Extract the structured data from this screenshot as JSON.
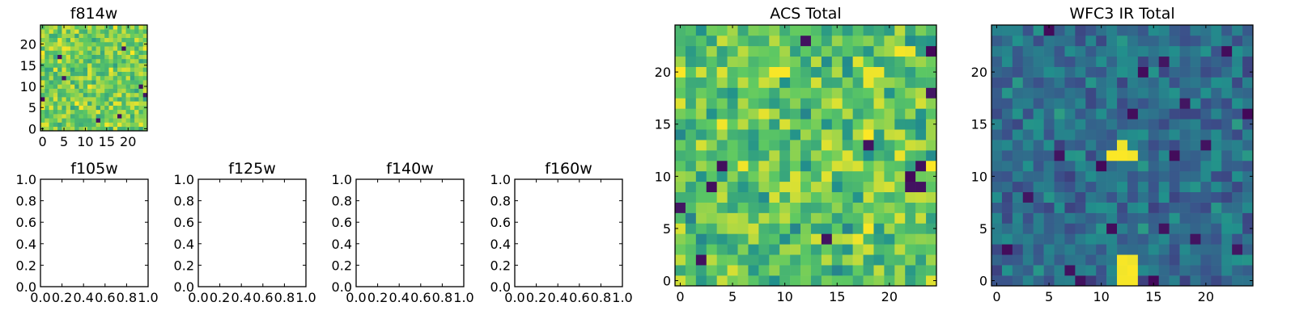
{
  "chart_data": [
    {
      "type": "heatmap",
      "title": "f814w",
      "grid_size": 25,
      "xlim": [
        -0.5,
        24.5
      ],
      "ylim": [
        -0.5,
        24.5
      ],
      "xticks": [
        0,
        5,
        10,
        15,
        20
      ],
      "yticks": [
        0,
        5,
        10,
        15,
        20
      ],
      "xtick_labels": [
        "0",
        "5",
        "10",
        "15",
        "20"
      ],
      "ytick_labels": [
        "0",
        "5",
        "10",
        "15",
        "20"
      ],
      "colormap": "viridis",
      "pattern": "noisy, mostly yellow-green (values ~0.55-0.95) with a few dark pixels",
      "grid": false
    },
    {
      "type": "heatmap",
      "title": "f105w",
      "empty": true,
      "xlim": [
        0,
        1
      ],
      "ylim": [
        0,
        1
      ],
      "xticks": [
        0.0,
        0.2,
        0.4,
        0.6,
        0.8,
        1.0
      ],
      "yticks": [
        0.0,
        0.2,
        0.4,
        0.6,
        0.8,
        1.0
      ],
      "xtick_labels": [
        "0.0",
        "0.2",
        "0.4",
        "0.6",
        "0.8",
        "1.0"
      ],
      "ytick_labels": [
        "0.0",
        "0.2",
        "0.4",
        "0.6",
        "0.8",
        "1.0"
      ]
    },
    {
      "type": "heatmap",
      "title": "f125w",
      "empty": true,
      "xlim": [
        0,
        1
      ],
      "ylim": [
        0,
        1
      ],
      "xticks": [
        0.0,
        0.2,
        0.4,
        0.6,
        0.8,
        1.0
      ],
      "yticks": [
        0.0,
        0.2,
        0.4,
        0.6,
        0.8,
        1.0
      ],
      "xtick_labels": [
        "0.0",
        "0.2",
        "0.4",
        "0.6",
        "0.8",
        "1.0"
      ],
      "ytick_labels": [
        "0.0",
        "0.2",
        "0.4",
        "0.6",
        "0.8",
        "1.0"
      ]
    },
    {
      "type": "heatmap",
      "title": "f140w",
      "empty": true,
      "xlim": [
        0,
        1
      ],
      "ylim": [
        0,
        1
      ],
      "xticks": [
        0.0,
        0.2,
        0.4,
        0.6,
        0.8,
        1.0
      ],
      "yticks": [
        0.0,
        0.2,
        0.4,
        0.6,
        0.8,
        1.0
      ],
      "xtick_labels": [
        "0.0",
        "0.2",
        "0.4",
        "0.6",
        "0.8",
        "1.0"
      ],
      "ytick_labels": [
        "0.0",
        "0.2",
        "0.4",
        "0.6",
        "0.8",
        "1.0"
      ]
    },
    {
      "type": "heatmap",
      "title": "f160w",
      "empty": true,
      "xlim": [
        0,
        1
      ],
      "ylim": [
        0,
        1
      ],
      "xticks": [
        0.0,
        0.2,
        0.4,
        0.6,
        0.8,
        1.0
      ],
      "yticks": [
        0.0,
        0.2,
        0.4,
        0.6,
        0.8,
        1.0
      ],
      "xtick_labels": [
        "0.0",
        "0.2",
        "0.4",
        "0.6",
        "0.8",
        "1.0"
      ],
      "ytick_labels": [
        "0.0",
        "0.2",
        "0.4",
        "0.6",
        "0.8",
        "1.0"
      ]
    },
    {
      "type": "heatmap",
      "title": "ACS Total",
      "grid_size": 25,
      "xlim": [
        -0.5,
        24.5
      ],
      "ylim": [
        -0.5,
        24.5
      ],
      "xticks": [
        0,
        5,
        10,
        15,
        20
      ],
      "yticks": [
        0,
        5,
        10,
        15,
        20
      ],
      "xtick_labels": [
        "0",
        "5",
        "10",
        "15",
        "20"
      ],
      "ytick_labels": [
        "0",
        "5",
        "10",
        "15",
        "20"
      ],
      "colormap": "viridis",
      "pattern": "noisy, mostly green to yellow (values ~0.5-0.95) with a few dark pixels",
      "grid": false
    },
    {
      "type": "heatmap",
      "title": "WFC3 IR Total",
      "grid_size": 25,
      "xlim": [
        -0.5,
        24.5
      ],
      "ylim": [
        -0.5,
        24.5
      ],
      "xticks": [
        0,
        5,
        10,
        15,
        20
      ],
      "yticks": [
        0,
        5,
        10,
        15,
        20
      ],
      "xtick_labels": [
        "0",
        "5",
        "10",
        "15",
        "20"
      ],
      "ytick_labels": [
        "0",
        "5",
        "10",
        "15",
        "20"
      ],
      "colormap": "viridis",
      "pattern": "noisy, mostly blue-teal (values ~0.25-0.5) with bright yellow pixels near (12,12) and a bright block at x 12-13, y 0-2",
      "grid": false
    }
  ],
  "colors": {
    "viridis_dark": "#440154",
    "viridis_blue": "#3b528b",
    "viridis_teal": "#21918c",
    "viridis_green": "#5ec962",
    "viridis_yellow": "#fde725",
    "axis": "#000000",
    "background": "#ffffff"
  }
}
